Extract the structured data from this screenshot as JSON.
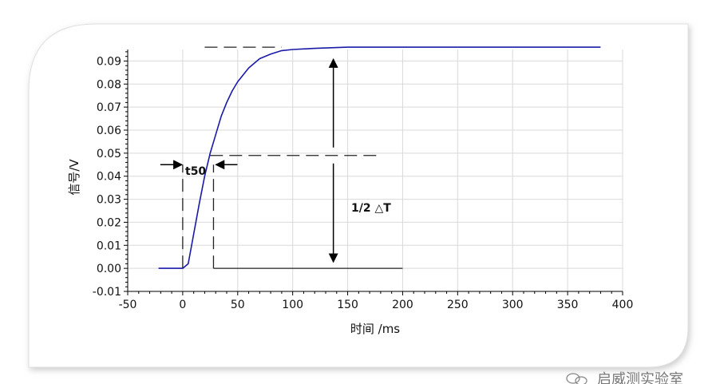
{
  "chart_data": {
    "type": "line",
    "xlabel": "时间 /ms",
    "ylabel": "信号/V",
    "xlim": [
      -50,
      400
    ],
    "ylim": [
      -0.01,
      0.095
    ],
    "x_ticks": [
      "-50",
      "0",
      "50",
      "100",
      "150",
      "200",
      "250",
      "300",
      "350",
      "400"
    ],
    "y_ticks": [
      "-0.01",
      "0.00",
      "0.01",
      "0.02",
      "0.03",
      "0.04",
      "0.05",
      "0.06",
      "0.07",
      "0.08",
      "0.09"
    ],
    "grid": true,
    "series": [
      {
        "color": "#1a1aa8",
        "x": [
          -22,
          -10,
          0,
          5,
          10,
          15,
          20,
          25,
          30,
          35,
          40,
          45,
          50,
          55,
          60,
          70,
          80,
          90,
          100,
          120,
          150,
          200,
          250,
          300,
          350,
          380
        ],
        "y": [
          0.0,
          0.0,
          0.0,
          0.002,
          0.015,
          0.028,
          0.04,
          0.05,
          0.058,
          0.066,
          0.072,
          0.077,
          0.081,
          0.084,
          0.087,
          0.091,
          0.093,
          0.0945,
          0.095,
          0.0955,
          0.096,
          0.096,
          0.096,
          0.096,
          0.096,
          0.096
        ]
      }
    ],
    "annotations": {
      "t50_label": "t50",
      "delta_label": "1/2 △T",
      "guides": {
        "top_dash": {
          "x": [
            20,
            90
          ],
          "y": 0.096
        },
        "half_dash": {
          "x": [
            25,
            180
          ],
          "y": 0.049
        },
        "base_line": {
          "x": [
            28,
            200
          ],
          "y": 0.0
        },
        "left_vdash": {
          "x": 0,
          "y": [
            0.0,
            0.045
          ]
        },
        "right_vdash": {
          "x": 28,
          "y": [
            0.0,
            0.045
          ]
        },
        "arrow_x": 137,
        "t50_arrow_y": 0.045
      }
    }
  },
  "watermark": "启威测实验室",
  "colors": {
    "line": "#1a1aa8",
    "grid": "#d9d9d9",
    "frame_shadow": "#d0d0d0"
  }
}
